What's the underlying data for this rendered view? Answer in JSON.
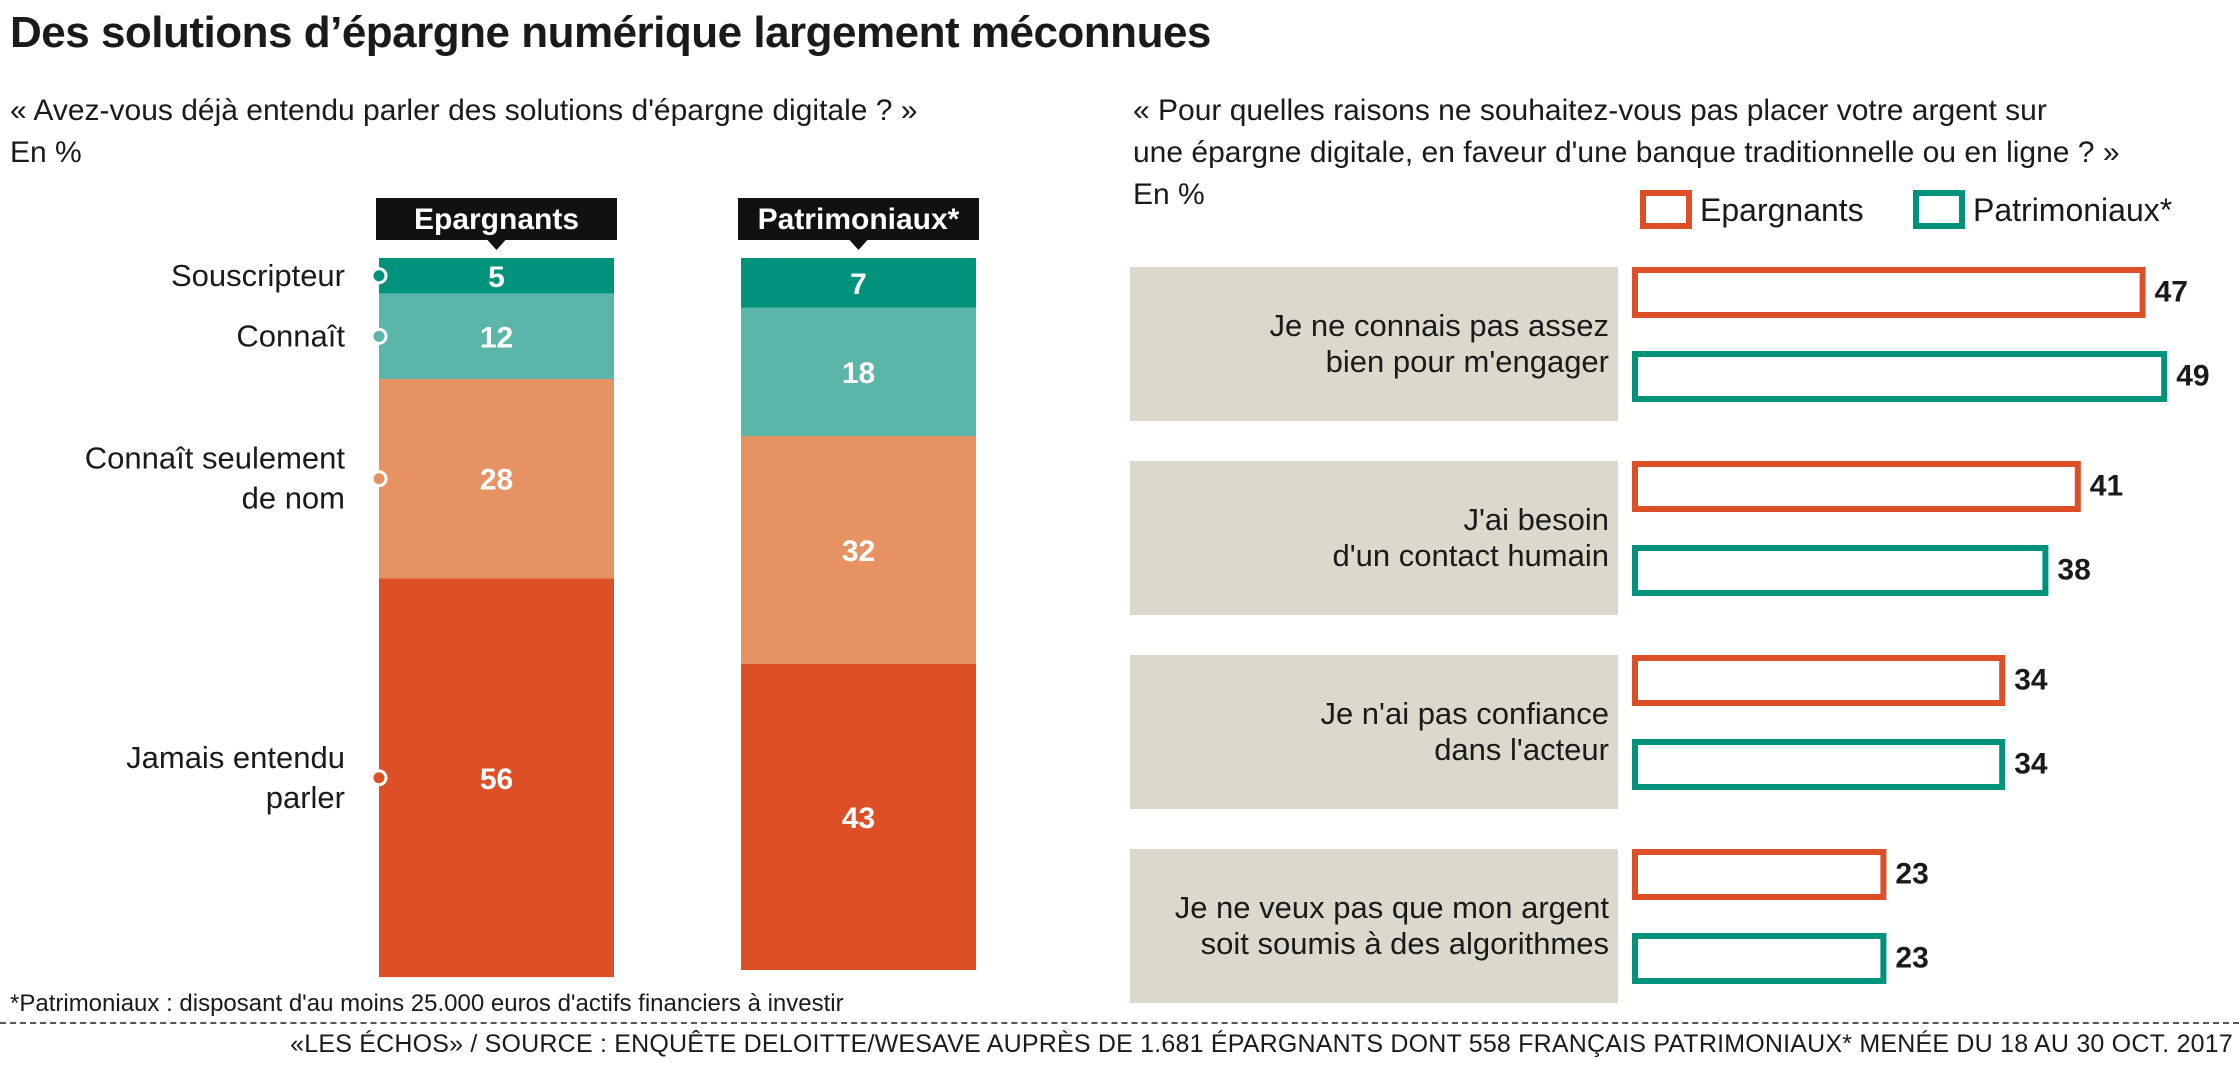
{
  "title": "Des solutions d’épargne numérique largement méconnues",
  "left_question": "« Avez-vous déjà entendu parler des solutions d'épargne digitale ? »",
  "left_unit": "En %",
  "right_question_line1": "« Pour quelles raisons ne souhaitez-vous pas placer votre argent sur",
  "right_question_line2": "une épargne digitale, en faveur d'une banque traditionnelle ou en ligne ? »",
  "right_unit": "En %",
  "footnote": "*Patrimoniaux : disposant d'au moins 25.000 euros d'actifs financiers à investir",
  "source": "«LES ÉCHOS» / SOURCE : ENQUÊTE DELOITTE/WESAVE AUPRÈS DE 1.681 ÉPARGNANTS DONT 558 FRANÇAIS PATRIMONIAUX* MENÉE DU 18 AU 30 OCT. 2017",
  "colors": {
    "souscripteur": "#00927a",
    "connait": "#5bb5a8",
    "connait_nom": "#e69263",
    "jamais": "#dd4f27",
    "epargnants": "#dd4f27",
    "patrimoniaux": "#00927a",
    "label_bg": "#dcd8cc"
  },
  "chart_data": [
    {
      "type": "bar",
      "stacked": true,
      "unit": "%",
      "categories": [
        "Epargnants",
        "Patrimoniaux*"
      ],
      "series": [
        {
          "name": "Souscripteur",
          "values": [
            5,
            7
          ]
        },
        {
          "name": "Connaît",
          "values": [
            12,
            18
          ]
        },
        {
          "name": "Connaît seulement de nom",
          "values": [
            28,
            32
          ]
        },
        {
          "name": "Jamais entendu parler",
          "values": [
            56,
            43
          ]
        }
      ],
      "series_labels": [
        [
          "Souscripteur"
        ],
        [
          "Connaît"
        ],
        [
          "Connaît seulement",
          "de nom"
        ],
        [
          "Jamais entendu",
          "parler"
        ]
      ]
    },
    {
      "type": "bar",
      "orientation": "horizontal",
      "unit": "%",
      "legend": [
        "Epargnants",
        "Patrimoniaux*"
      ],
      "legend_position": "top-right",
      "categories": [
        [
          "Je ne connais pas assez",
          "bien pour m'engager"
        ],
        [
          "J'ai besoin",
          "d'un contact humain"
        ],
        [
          "Je n'ai pas confiance",
          "dans l'acteur"
        ],
        [
          "Je ne veux pas que mon argent",
          "soit soumis à des algorithmes"
        ]
      ],
      "series": [
        {
          "name": "Epargnants",
          "values": [
            47,
            41,
            34,
            23
          ]
        },
        {
          "name": "Patrimoniaux*",
          "values": [
            49,
            38,
            34,
            23
          ]
        }
      ]
    }
  ]
}
